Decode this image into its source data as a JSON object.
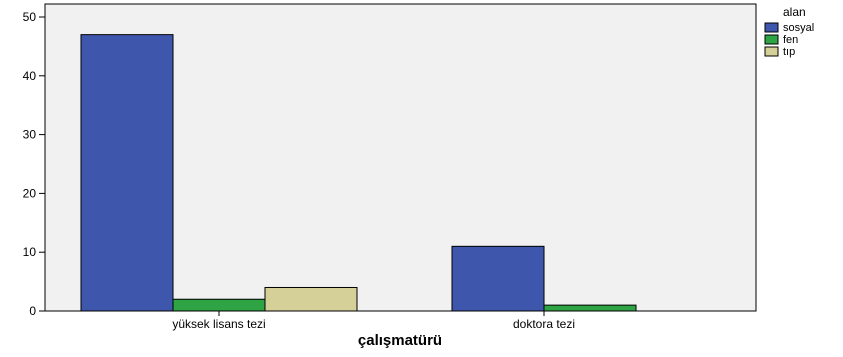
{
  "chart_data": {
    "type": "bar",
    "title": "",
    "xlabel": "çalışmatürü",
    "ylabel": "",
    "categories": [
      "yüksek lisans tezi",
      "doktora tezi"
    ],
    "series": [
      {
        "name": "sosyal",
        "values": [
          47,
          11
        ],
        "color": "#3f56ad"
      },
      {
        "name": "fen",
        "values": [
          2,
          1
        ],
        "color": "#2ea445"
      },
      {
        "name": "tıp",
        "values": [
          4,
          0
        ],
        "color": "#d5cf98"
      }
    ],
    "ylim": [
      0,
      52
    ],
    "yticks": [
      0,
      10,
      20,
      30,
      40,
      50
    ],
    "legend": {
      "title": "alan",
      "position": "top-right"
    },
    "grid": false,
    "plot_background": "#f1f1f1"
  }
}
